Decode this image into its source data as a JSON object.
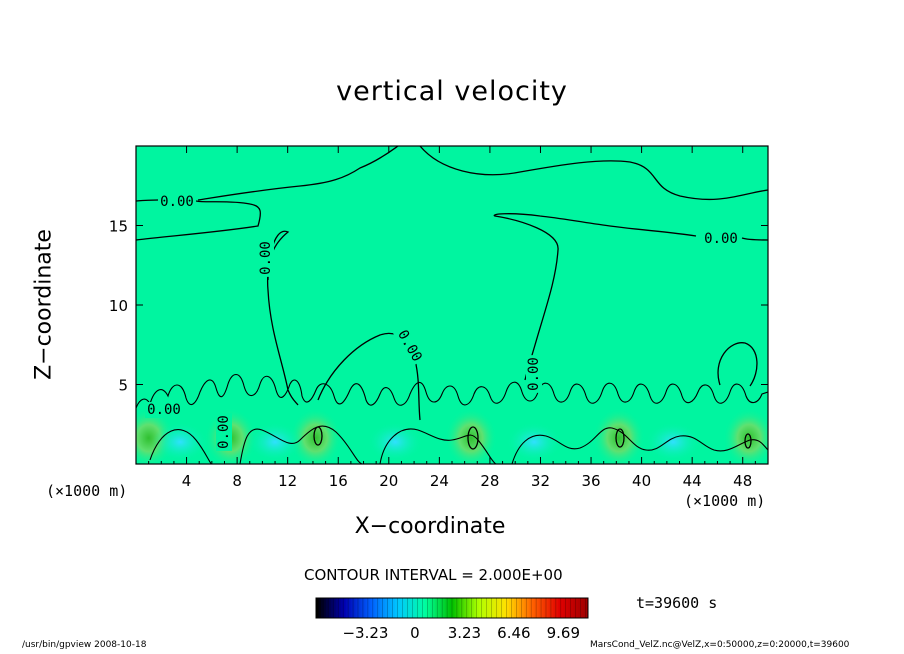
{
  "chart_data": {
    "type": "heatmap",
    "title": "vertical velocity",
    "xlabel": "X−coordinate",
    "ylabel": "Z−coordinate",
    "x_unit_left": "(×1000 m)",
    "x_unit_right": "(×1000 m)",
    "xlim": [
      0,
      50
    ],
    "ylim": [
      0,
      20
    ],
    "x_ticks": [
      4,
      8,
      12,
      16,
      20,
      24,
      28,
      32,
      36,
      40,
      44,
      48
    ],
    "x_tick_labels": [
      "4",
      "8",
      "12",
      "16",
      "20",
      "24",
      "28",
      "32",
      "36",
      "40",
      "44",
      "48"
    ],
    "y_ticks": [
      5,
      10,
      15
    ],
    "y_tick_labels": [
      "5",
      "10",
      "15"
    ],
    "contour_interval": "CONTOUR INTERVAL = 2.000E+00",
    "contour_labels": [
      "0.00",
      "0.00",
      "0.00",
      "0.00",
      "0.00",
      "0.00",
      "0.00"
    ],
    "colorbar": {
      "ticks": [
        -3.23,
        0,
        3.23,
        6.46,
        9.69
      ],
      "tick_labels": [
        "−3.23",
        "0",
        "3.23",
        "6.46",
        "9.69"
      ],
      "range": [
        -6.46,
        11.3
      ],
      "colors": [
        "#000000",
        "#0000b0",
        "#0060ff",
        "#00c8ff",
        "#00ffa0",
        "#00c000",
        "#b0ff00",
        "#ffe000",
        "#ff6000",
        "#e00000",
        "#a00000"
      ]
    },
    "field_background_color": "#00f5a0",
    "updraft_cores_x": [
      1,
      7.5,
      14.2,
      26.5,
      38.2,
      48.5
    ],
    "time": "t=39600  s"
  },
  "footer": {
    "left": "/usr/bin/gpview   2008-10-18",
    "right": "MarsCond_VelZ.nc@VelZ,x=0:50000,z=0:20000,t=39600"
  }
}
